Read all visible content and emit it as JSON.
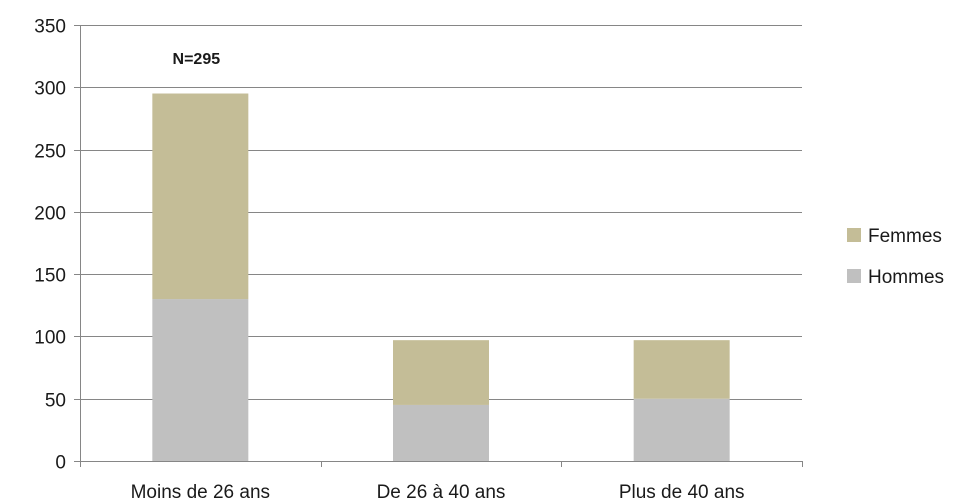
{
  "chart_data": {
    "type": "bar",
    "stacked": true,
    "categories": [
      "Moins de 26 ans",
      "De 26 à 40 ans",
      "Plus de 40 ans"
    ],
    "series": [
      {
        "name": "Hommes",
        "color": "#c0c0c0",
        "values": [
          130,
          45,
          50
        ]
      },
      {
        "name": "Femmes",
        "color": "#c4bd97",
        "values": [
          165,
          52,
          47
        ]
      }
    ],
    "ylim": [
      0,
      350
    ],
    "yticks": [
      0,
      50,
      100,
      150,
      200,
      250,
      300,
      350
    ],
    "grid": true,
    "legend_position": "right",
    "legend_order": [
      "Femmes",
      "Hommes"
    ],
    "annotations": [
      {
        "text": "N=295",
        "category": "Moins de 26 ans"
      }
    ],
    "colors": {
      "gridline": "#868686",
      "axis": "#868686"
    }
  }
}
